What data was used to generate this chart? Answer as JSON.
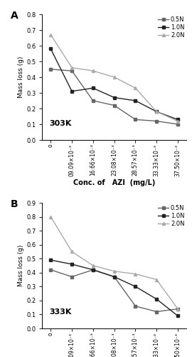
{
  "panel_A": {
    "label": "A",
    "temp": "303K",
    "ylim": [
      0,
      0.8
    ],
    "yticks": [
      0,
      0.1,
      0.2,
      0.3,
      0.4,
      0.5,
      0.6,
      0.7,
      0.8
    ],
    "series": [
      {
        "name": "0.5N",
        "values": [
          0.45,
          0.44,
          0.25,
          0.22,
          0.13,
          0.12,
          0.1
        ],
        "color": "#666666",
        "marker": "s",
        "linestyle": "-"
      },
      {
        "name": "1.0N",
        "values": [
          0.58,
          0.31,
          0.33,
          0.27,
          0.25,
          0.18,
          0.13
        ],
        "color": "#222222",
        "marker": "s",
        "linestyle": "-"
      },
      {
        "name": "2.0N",
        "values": [
          0.67,
          0.46,
          0.44,
          0.4,
          0.33,
          0.18,
          0.12
        ],
        "color": "#aaaaaa",
        "marker": "^",
        "linestyle": "-"
      }
    ]
  },
  "panel_B": {
    "label": "B",
    "temp": "333K",
    "ylim": [
      0,
      0.9
    ],
    "yticks": [
      0,
      0.1,
      0.2,
      0.3,
      0.4,
      0.5,
      0.6,
      0.7,
      0.8,
      0.9
    ],
    "series": [
      {
        "name": "0.5N",
        "values": [
          0.42,
          0.37,
          0.42,
          0.37,
          0.16,
          0.12,
          0.14
        ],
        "color": "#666666",
        "marker": "s",
        "linestyle": "-"
      },
      {
        "name": "1.0N",
        "values": [
          0.49,
          0.46,
          0.42,
          0.37,
          0.3,
          0.21,
          0.09
        ],
        "color": "#222222",
        "marker": "s",
        "linestyle": "-"
      },
      {
        "name": "2.0N",
        "values": [
          0.8,
          0.55,
          0.45,
          0.41,
          0.39,
          0.35,
          0.14
        ],
        "color": "#aaaaaa",
        "marker": "^",
        "linestyle": "-"
      }
    ]
  },
  "x_tick_labels": [
    "o",
    "09.09×10⁻³",
    "16.66×10⁻³",
    "23.08×10⁻³",
    "28.57×10⁻³",
    "33.33×10⁻³",
    "37.50×10⁻³"
  ],
  "xlabel": "Conc. of   AZI  (mg/L)",
  "ylabel": "Mass loss (g)",
  "bg_color": "#ffffff"
}
